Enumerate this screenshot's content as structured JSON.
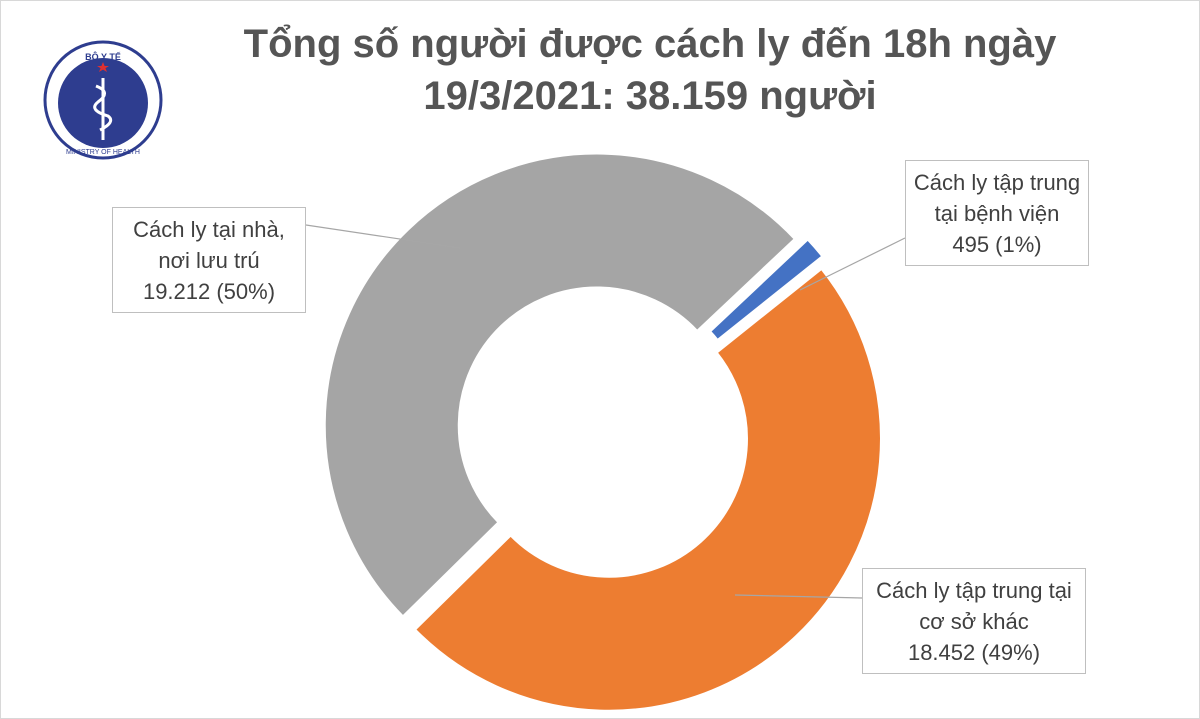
{
  "logo": {
    "top": "BỘ Y TẾ",
    "bottom": "MINISTRY OF HEALTH"
  },
  "chart_data": {
    "type": "donut",
    "title": "Tổng số người được cách ly đến 18h ngày 19/3/2021: 38.159 người",
    "categories": [
      "Cách ly tập trung tại bệnh viện",
      "Cách ly tập trung tại cơ sở khác",
      "Cách ly tại nhà, nơi lưu trú"
    ],
    "values": [
      495,
      18452,
      19212
    ],
    "value_labels": [
      "495 (1%)",
      "18.452 (49%)",
      "19.212 (50%)"
    ],
    "colors": [
      "#4472c4",
      "#ed7d31",
      "#a5a5a5"
    ]
  }
}
